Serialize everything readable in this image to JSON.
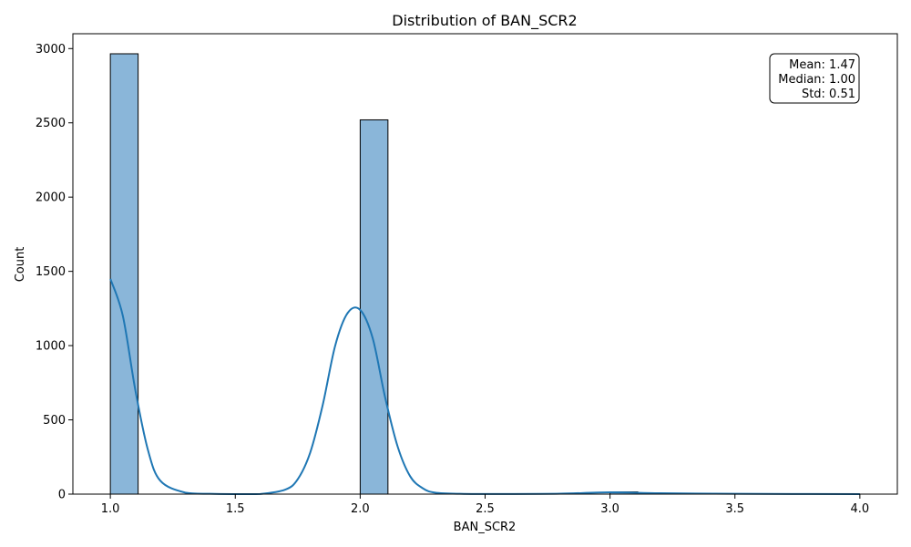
{
  "chart_data": {
    "type": "histogram",
    "title": "Distribution of BAN_SCR2",
    "xlabel": "BAN_SCR2",
    "ylabel": "Count",
    "xlim": [
      0.85,
      4.15
    ],
    "ylim": [
      0,
      3100
    ],
    "xticks": [
      1.0,
      1.5,
      2.0,
      2.5,
      3.0,
      3.5,
      4.0
    ],
    "xtick_labels": [
      "1.0",
      "1.5",
      "2.0",
      "2.5",
      "3.0",
      "3.5",
      "4.0"
    ],
    "yticks": [
      0,
      500,
      1000,
      1500,
      2000,
      2500,
      3000
    ],
    "ytick_labels": [
      "0",
      "500",
      "1000",
      "1500",
      "2000",
      "2500",
      "3000"
    ],
    "grid": false,
    "bars": [
      {
        "x0": 1.0,
        "x1": 1.1111,
        "count": 2965
      },
      {
        "x0": 2.0,
        "x1": 2.1111,
        "count": 2520
      },
      {
        "x0": 3.0,
        "x1": 3.1111,
        "count": 15
      }
    ],
    "bar_color": "#8ab6d9",
    "bar_edge_color": "#000000",
    "kde": {
      "x": [
        1.0,
        1.05,
        1.1,
        1.15,
        1.2,
        1.3,
        1.4,
        1.5,
        1.6,
        1.7,
        1.75,
        1.8,
        1.85,
        1.9,
        1.95,
        2.0,
        2.05,
        2.1,
        2.15,
        2.2,
        2.25,
        2.3,
        2.4,
        2.6,
        2.8,
        3.0,
        3.2,
        3.5,
        4.0
      ],
      "y": [
        1450,
        1200,
        700,
        300,
        90,
        10,
        2,
        0,
        1,
        30,
        100,
        280,
        600,
        1000,
        1220,
        1240,
        1050,
        650,
        320,
        120,
        40,
        10,
        2,
        1,
        3,
        12,
        6,
        2,
        0
      ],
      "color": "#1f77b4"
    },
    "stats": {
      "lines": [
        "Mean: 1.47",
        "Median: 1.00",
        "Std: 0.51"
      ],
      "placement": "top-right"
    }
  }
}
